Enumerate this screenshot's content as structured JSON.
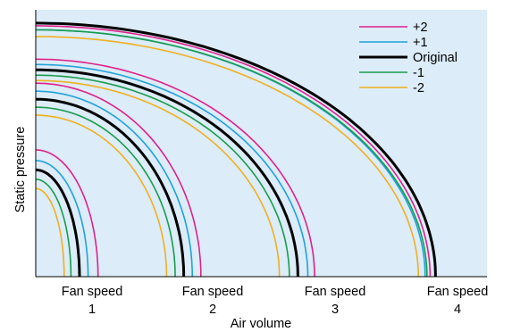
{
  "chart_data": {
    "type": "line",
    "title": "",
    "xlabel": "Air volume",
    "ylabel": "Static pressure",
    "grid": false,
    "legend_position": "top-right",
    "background_color": "#dcecf8",
    "fan_speeds": [
      {
        "label_line1": "Fan speed",
        "label_line2": "1"
      },
      {
        "label_line1": "Fan speed",
        "label_line2": "2"
      },
      {
        "label_line1": "Fan speed",
        "label_line2": "3"
      },
      {
        "label_line1": "Fan speed",
        "label_line2": "4"
      }
    ],
    "series": [
      {
        "name": "+2",
        "color": "#e0218a",
        "curves": [
          {
            "p0": 0.475,
            "q0": 0.138
          },
          {
            "p0": 0.725,
            "q0": 0.366
          },
          {
            "p0": 0.815,
            "q0": 0.618
          },
          {
            "p0": 0.94,
            "q0": 0.874
          }
        ]
      },
      {
        "name": "+1",
        "color": "#1fa2d8",
        "curves": [
          {
            "p0": 0.435,
            "q0": 0.116
          },
          {
            "p0": 0.695,
            "q0": 0.347
          },
          {
            "p0": 0.795,
            "q0": 0.603
          },
          {
            "p0": 0.925,
            "q0": 0.863
          }
        ]
      },
      {
        "name": "Original",
        "color": "#000000",
        "curves": [
          {
            "p0": 0.4,
            "q0": 0.097
          },
          {
            "p0": 0.665,
            "q0": 0.328
          },
          {
            "p0": 0.775,
            "q0": 0.581
          },
          {
            "p0": 0.95,
            "q0": 0.886
          }
        ]
      },
      {
        "name": "-1",
        "color": "#1a9c4b",
        "curves": [
          {
            "p0": 0.365,
            "q0": 0.078
          },
          {
            "p0": 0.635,
            "q0": 0.309
          },
          {
            "p0": 0.755,
            "q0": 0.562
          },
          {
            "p0": 0.925,
            "q0": 0.867
          }
        ]
      },
      {
        "name": "-2",
        "color": "#f0b01e",
        "curves": [
          {
            "p0": 0.33,
            "q0": 0.063
          },
          {
            "p0": 0.605,
            "q0": 0.29
          },
          {
            "p0": 0.735,
            "q0": 0.54
          },
          {
            "p0": 0.9,
            "q0": 0.848
          }
        ]
      }
    ]
  }
}
